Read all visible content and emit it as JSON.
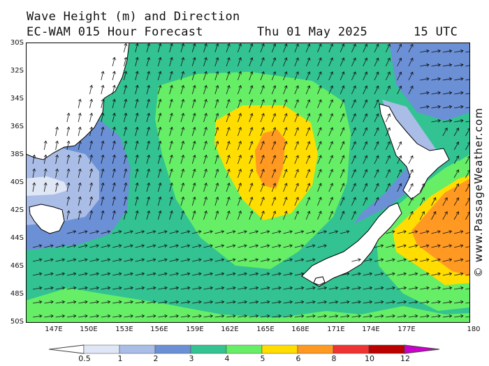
{
  "header": {
    "title": "Wave Height (m) and Direction",
    "model": "EC-WAM 015 Hour Forecast",
    "date": "Thu 01 May 2025",
    "time": "15 UTC"
  },
  "credit": "© www.PassageWeather.com",
  "axes": {
    "latitudes": [
      "30S",
      "32S",
      "34S",
      "36S",
      "38S",
      "40S",
      "42S",
      "44S",
      "46S",
      "48S",
      "50S"
    ],
    "longitudes": [
      "147E",
      "150E",
      "153E",
      "156E",
      "159E",
      "162E",
      "165E",
      "168E",
      "171E",
      "174E",
      "177E",
      "180"
    ]
  },
  "legend": {
    "labels": [
      "0.5",
      "1",
      "2",
      "3",
      "4",
      "5",
      "6",
      "8",
      "10",
      "12"
    ],
    "colors": [
      "#ffffff",
      "#dfe6f5",
      "#a9bde6",
      "#6b90d6",
      "#33c292",
      "#66ee66",
      "#ffdd00",
      "#ff9922",
      "#ee3333",
      "#bb0000",
      "#cc00cc"
    ]
  },
  "colors": {
    "land": "#ffffff",
    "arrows": "#111111"
  }
}
